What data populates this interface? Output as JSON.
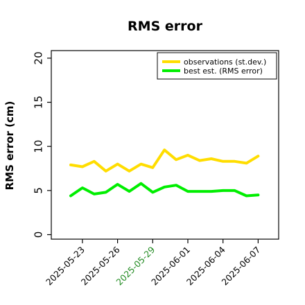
{
  "chart_data": {
    "type": "line",
    "title": "RMS error",
    "xlabel": "",
    "ylabel": "RMS error (cm)",
    "ylim": [
      0,
      21
    ],
    "yticks": [
      0,
      5,
      10,
      15,
      20
    ],
    "x": [
      "2025-05-22",
      "2025-05-23",
      "2025-05-24",
      "2025-05-25",
      "2025-05-26",
      "2025-05-27",
      "2025-05-28",
      "2025-05-29",
      "2025-05-30",
      "2025-05-31",
      "2025-06-01",
      "2025-06-02",
      "2025-06-03",
      "2025-06-04",
      "2025-06-05",
      "2025-06-06",
      "2025-06-07"
    ],
    "xtick_labels": [
      "2025-05-23",
      "2025-05-26",
      "2025-05-29",
      "2025-06-01",
      "2025-06-04",
      "2025-06-07"
    ],
    "xtick_colors": [
      "#000000",
      "#000000",
      "#228b22",
      "#000000",
      "#000000",
      "#000000"
    ],
    "series": [
      {
        "name": "observations (st.dev.)",
        "color": "#ffdd00",
        "values": [
          7.9,
          7.7,
          8.3,
          7.2,
          8.0,
          7.2,
          8.0,
          7.6,
          9.6,
          8.5,
          9.0,
          8.4,
          8.6,
          8.3,
          8.3,
          8.1,
          8.9
        ]
      },
      {
        "name": "best est. (RMS error)",
        "color": "#00ee00",
        "values": [
          4.4,
          5.3,
          4.6,
          4.8,
          5.7,
          4.9,
          5.8,
          4.8,
          5.4,
          5.6,
          4.9,
          4.9,
          4.9,
          5.0,
          5.0,
          4.4,
          4.5
        ]
      }
    ],
    "grid": false,
    "legend_position": "top-right"
  }
}
